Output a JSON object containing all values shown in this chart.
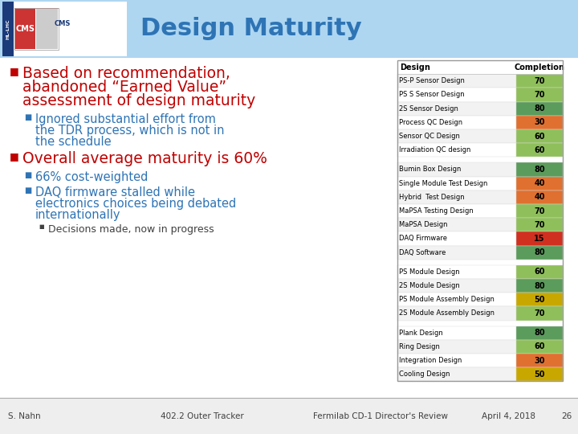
{
  "title": "Design Maturity",
  "title_color": "#2E74B5",
  "bg_color": "#FFFFFF",
  "header_bg": "#AED6F1",
  "groups": [
    {
      "rows": [
        {
          "name": "PS-P Sensor Design",
          "value": 70
        },
        {
          "name": "PS S Sensor Design",
          "value": 70
        },
        {
          "name": "2S Sensor Design",
          "value": 80
        },
        {
          "name": "Process QC Design",
          "value": 30
        },
        {
          "name": "Sensor QC Design",
          "value": 60
        },
        {
          "name": "Irradiation QC design",
          "value": 60
        }
      ]
    },
    {
      "rows": [
        {
          "name": "Bumin Box Design",
          "value": 80
        },
        {
          "name": "Single Module Test Design",
          "value": 40
        },
        {
          "name": "Hybrid  Test Design",
          "value": 40
        },
        {
          "name": "MaPSA Testing Design",
          "value": 70
        },
        {
          "name": "MaPSA Design",
          "value": 70
        },
        {
          "name": "DAQ Firmware",
          "value": 15
        },
        {
          "name": "DAQ Software",
          "value": 80
        }
      ]
    },
    {
      "rows": [
        {
          "name": "PS Module Design",
          "value": 60
        },
        {
          "name": "2S Module Design",
          "value": 80
        },
        {
          "name": "PS Module Assembly Design",
          "value": 50
        },
        {
          "name": "2S Module Assembly Design",
          "value": 70
        }
      ]
    },
    {
      "rows": [
        {
          "name": "Plank Design",
          "value": 80
        },
        {
          "name": "Ring Design",
          "value": 60
        },
        {
          "name": "Integration Design",
          "value": 30
        },
        {
          "name": "Cooling Design",
          "value": 50
        }
      ]
    }
  ],
  "bullet_points": [
    {
      "level": 1,
      "color": "#C00000",
      "text": "Based on recommendation,\nabandoned “Earned Value”\nassessment of design maturity"
    },
    {
      "level": 2,
      "color": "#2E74B5",
      "text": "Ignored substantial effort from\nthe TDR process, which is not in\nthe schedule"
    },
    {
      "level": 1,
      "color": "#C00000",
      "text": "Overall average maturity is 60%"
    },
    {
      "level": 2,
      "color": "#2E74B5",
      "text": "66% cost-weighted"
    },
    {
      "level": 2,
      "color": "#2E74B5",
      "text": "DAQ firmware stalled while\nelectronics choices being debated\ninternationally"
    },
    {
      "level": 3,
      "color": "#404040",
      "text": "Decisions made, now in progress"
    }
  ],
  "footer_left": "S. Nahn",
  "footer_center": "402.2 Outer Tracker",
  "footer_center2": "Fermilab CD-1 Director's Review",
  "footer_right": "April 4, 2018",
  "footer_page": "26"
}
